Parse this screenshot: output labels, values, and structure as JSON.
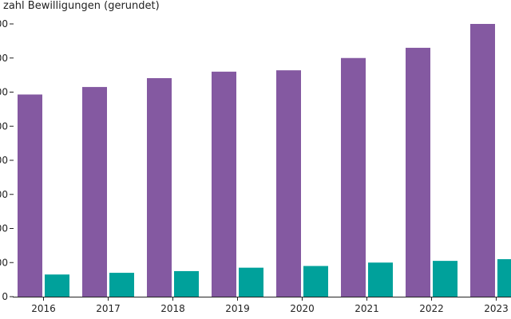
{
  "chart_data": {
    "type": "bar",
    "title": "",
    "ylabel": "zahl Bewilligungen (gerundet)",
    "xlabel": "",
    "categories": [
      "2016",
      "2017",
      "2018",
      "2019",
      "2020",
      "2021",
      "2022",
      "2023"
    ],
    "series": [
      {
        "color": "#8459a1",
        "values": [
          5930,
          6150,
          6410,
          6600,
          6640,
          7000,
          7300,
          8000
        ]
      },
      {
        "color": "#00a19b",
        "values": [
          650,
          700,
          750,
          850,
          900,
          1000,
          1050,
          1100
        ]
      }
    ],
    "ylim": [
      0,
      8000
    ],
    "yticks": [
      0,
      1000,
      2000,
      3000,
      4000,
      5000,
      6000,
      7000,
      8000
    ],
    "ytick_labels": [
      "0",
      "00",
      "00",
      "00",
      "00",
      "00",
      "00",
      "00",
      "00"
    ],
    "grid": false,
    "legend": "none"
  }
}
